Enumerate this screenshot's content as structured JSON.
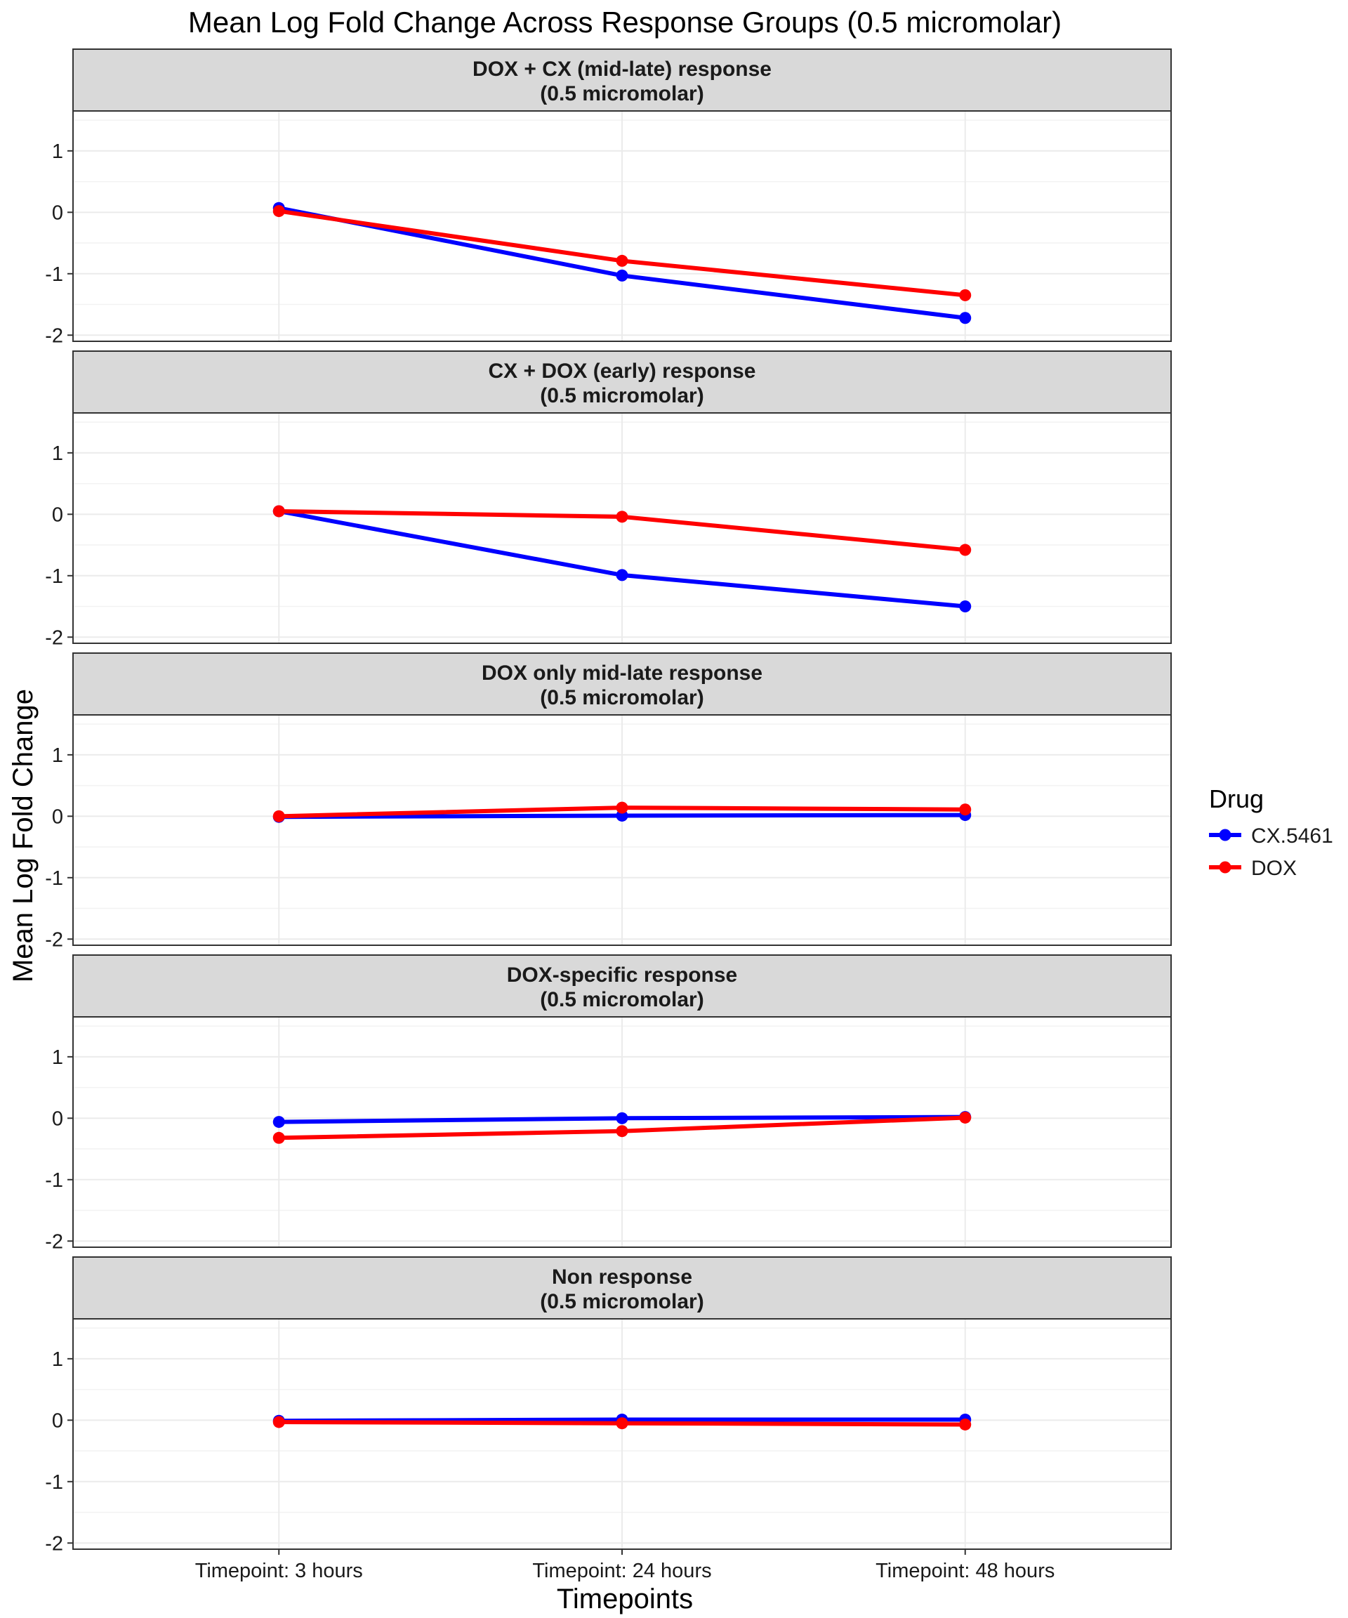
{
  "chart_data": {
    "type": "line",
    "title": "Mean Log Fold Change Across Response Groups (0.5 micromolar)",
    "xlabel": "Timepoints",
    "ylabel": "Mean Log Fold Change",
    "categories": [
      "Timepoint: 3 hours",
      "Timepoint: 24 hours",
      "Timepoint: 48 hours"
    ],
    "ylim": [
      -2.1,
      1.65
    ],
    "y_ticks": [
      -2,
      -1,
      0,
      1
    ],
    "y_tick_labels": [
      "-2",
      "-1",
      "0",
      "1"
    ],
    "grid": true,
    "legend": {
      "title": "Drug",
      "position": "right",
      "entries": [
        {
          "name": "CX.5461",
          "color": "#0000ff"
        },
        {
          "name": "DOX",
          "color": "#ff0000"
        }
      ]
    },
    "panels": [
      {
        "label_line1": "DOX + CX (mid-late) response",
        "label_line2": "(0.5 micromolar)",
        "series": [
          {
            "name": "CX.5461",
            "values": [
              0.07,
              -1.03,
              -1.72
            ]
          },
          {
            "name": "DOX",
            "values": [
              0.02,
              -0.79,
              -1.35
            ]
          }
        ]
      },
      {
        "label_line1": "CX + DOX (early) response",
        "label_line2": "(0.5 micromolar)",
        "series": [
          {
            "name": "CX.5461",
            "values": [
              0.05,
              -0.99,
              -1.5
            ]
          },
          {
            "name": "DOX",
            "values": [
              0.05,
              -0.04,
              -0.58
            ]
          }
        ]
      },
      {
        "label_line1": "DOX only mid-late response",
        "label_line2": "(0.5 micromolar)",
        "series": [
          {
            "name": "CX.5461",
            "values": [
              -0.01,
              0.01,
              0.02
            ]
          },
          {
            "name": "DOX",
            "values": [
              0.0,
              0.14,
              0.11
            ]
          }
        ]
      },
      {
        "label_line1": "DOX-specific response",
        "label_line2": "(0.5 micromolar)",
        "series": [
          {
            "name": "CX.5461",
            "values": [
              -0.06,
              0.0,
              0.02
            ]
          },
          {
            "name": "DOX",
            "values": [
              -0.32,
              -0.21,
              0.01
            ]
          }
        ]
      },
      {
        "label_line1": "Non response",
        "label_line2": "(0.5 micromolar)",
        "series": [
          {
            "name": "CX.5461",
            "values": [
              -0.01,
              0.01,
              0.01
            ]
          },
          {
            "name": "DOX",
            "values": [
              -0.03,
              -0.05,
              -0.07
            ]
          }
        ]
      }
    ]
  }
}
